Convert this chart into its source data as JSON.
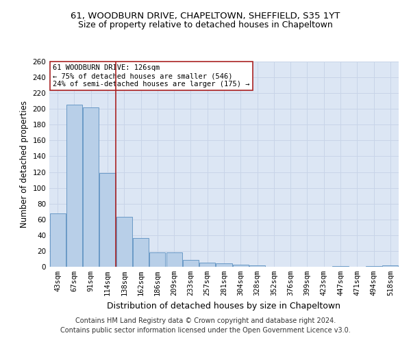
{
  "title_line1": "61, WOODBURN DRIVE, CHAPELTOWN, SHEFFIELD, S35 1YT",
  "title_line2": "Size of property relative to detached houses in Chapeltown",
  "xlabel": "Distribution of detached houses by size in Chapeltown",
  "ylabel": "Number of detached properties",
  "categories": [
    "43sqm",
    "67sqm",
    "91sqm",
    "114sqm",
    "138sqm",
    "162sqm",
    "186sqm",
    "209sqm",
    "233sqm",
    "257sqm",
    "281sqm",
    "304sqm",
    "328sqm",
    "352sqm",
    "376sqm",
    "399sqm",
    "423sqm",
    "447sqm",
    "471sqm",
    "494sqm",
    "518sqm"
  ],
  "values": [
    68,
    205,
    202,
    119,
    63,
    36,
    18,
    18,
    9,
    5,
    4,
    3,
    2,
    0,
    0,
    0,
    0,
    1,
    0,
    1,
    2
  ],
  "bar_color": "#b8cfe8",
  "bar_edge_color": "#5a8fc0",
  "vline_pos": 3.5,
  "vline_color": "#aa2222",
  "annotation_text": "61 WOODBURN DRIVE: 126sqm\n← 75% of detached houses are smaller (546)\n24% of semi-detached houses are larger (175) →",
  "annotation_box_color": "#ffffff",
  "annotation_box_edge_color": "#aa2222",
  "ylim": [
    0,
    260
  ],
  "yticks": [
    0,
    20,
    40,
    60,
    80,
    100,
    120,
    140,
    160,
    180,
    200,
    220,
    240,
    260
  ],
  "grid_color": "#c8d4e8",
  "background_color": "#dce6f4",
  "footer_line1": "Contains HM Land Registry data © Crown copyright and database right 2024.",
  "footer_line2": "Contains public sector information licensed under the Open Government Licence v3.0.",
  "title_fontsize": 9.5,
  "subtitle_fontsize": 9,
  "ylabel_fontsize": 8.5,
  "xlabel_fontsize": 9,
  "tick_fontsize": 7.5,
  "annotation_fontsize": 7.5,
  "footer_fontsize": 7
}
